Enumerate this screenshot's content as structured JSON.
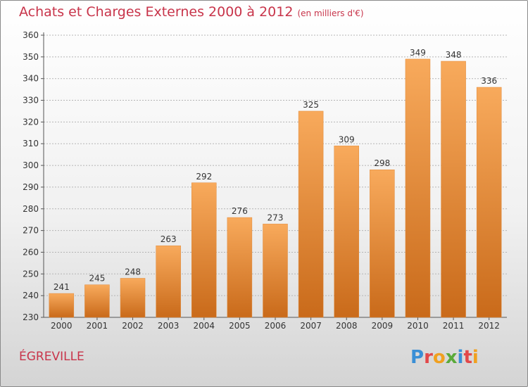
{
  "header": {
    "title": "Achats et Charges Externes 2000 à 2012",
    "subtitle": "(en milliers d'€)"
  },
  "footer": {
    "commune": "ÉGREVILLE",
    "logo_text": "Proxiti"
  },
  "colors": {
    "title": "#c8344a",
    "bar_top": "#f8aa5c",
    "bar_bottom": "#c96a1a",
    "grid": "#b5b5b5"
  },
  "chart_data": {
    "type": "bar",
    "categories": [
      "2000",
      "2001",
      "2002",
      "2003",
      "2004",
      "2005",
      "2006",
      "2007",
      "2008",
      "2009",
      "2010",
      "2011",
      "2012"
    ],
    "values": [
      241,
      245,
      248,
      263,
      292,
      276,
      273,
      325,
      309,
      298,
      349,
      348,
      336
    ],
    "title": "Achats et Charges Externes 2000 à 2012",
    "subtitle": "(en milliers d'€)",
    "ylim": [
      230,
      360
    ],
    "yticks": [
      230,
      240,
      250,
      260,
      270,
      280,
      290,
      300,
      310,
      320,
      330,
      340,
      350,
      360
    ],
    "grid": true,
    "data_labels": true
  }
}
